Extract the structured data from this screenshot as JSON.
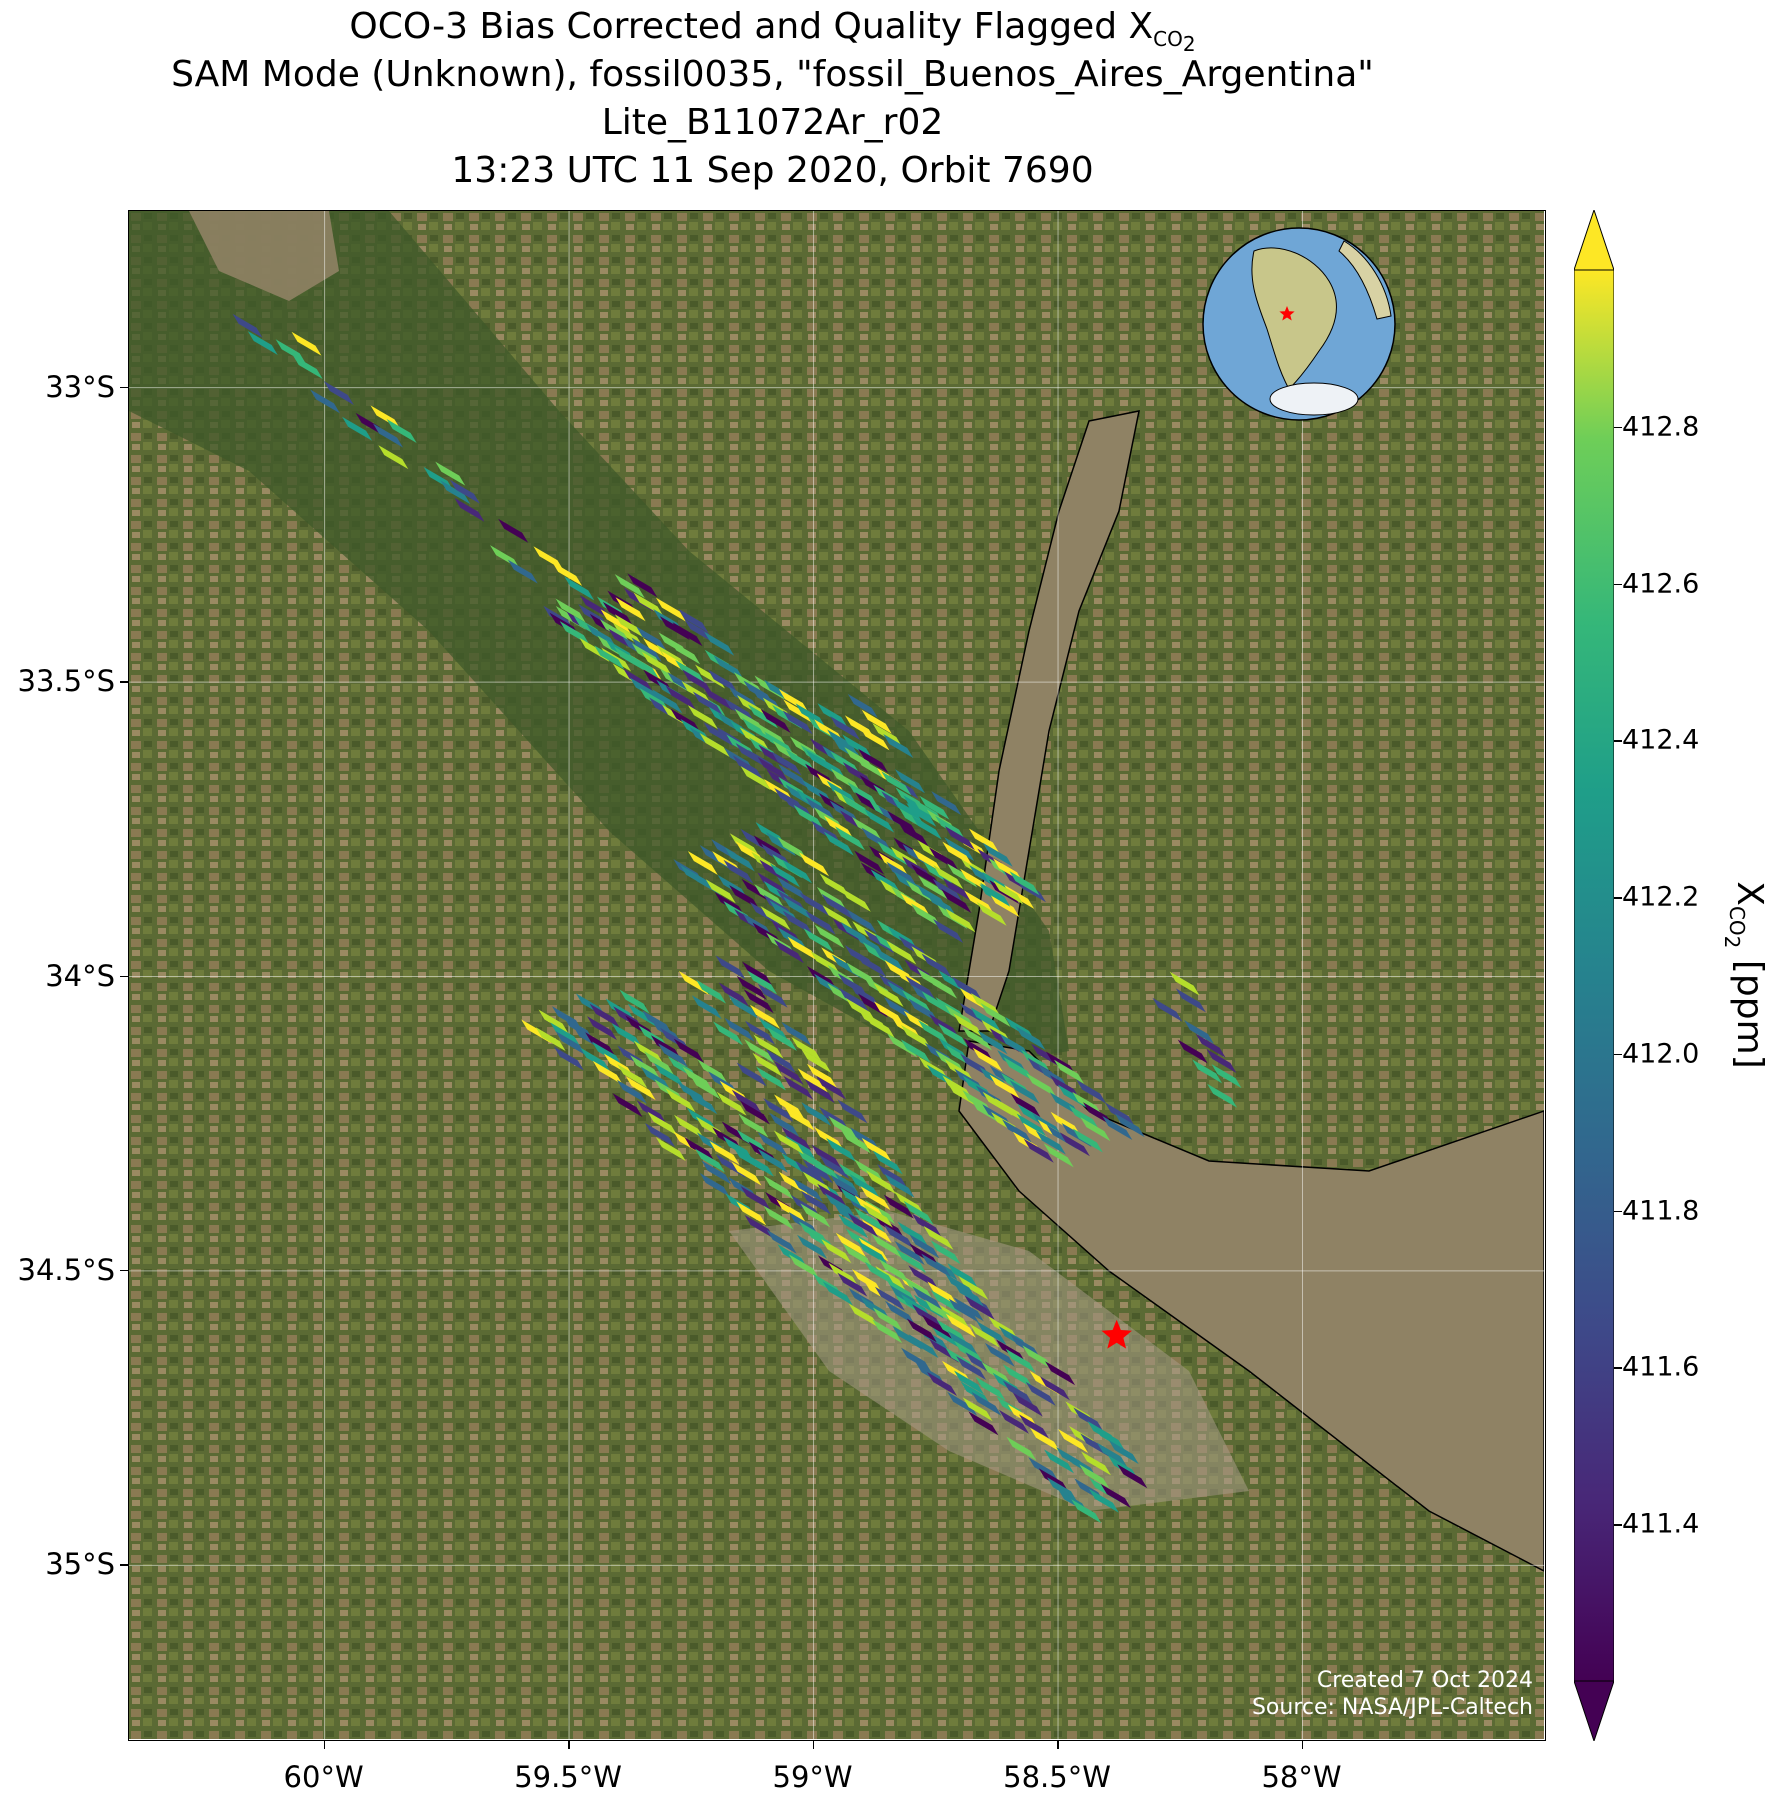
{
  "title": {
    "line1_prefix": "OCO-3 Bias Corrected and Quality Flagged X",
    "line1_sub": "CO",
    "line1_subsub": "2",
    "line2": "SAM Mode (Unknown), fossil0035, \"fossil_Buenos_Aires_Argentina\"",
    "line3": "Lite_B11072Ar_r02",
    "line4": "13:23 UTC 11 Sep 2020, Orbit 7690"
  },
  "axes": {
    "lon_range": [
      -60.4,
      -57.5
    ],
    "lat_range": [
      -35.3,
      -32.7
    ],
    "x_ticks": [
      {
        "value": -60.0,
        "label": "60°W"
      },
      {
        "value": -59.5,
        "label": "59.5°W"
      },
      {
        "value": -59.0,
        "label": "59°W"
      },
      {
        "value": -58.5,
        "label": "58.5°W"
      },
      {
        "value": -58.0,
        "label": "58°W"
      }
    ],
    "y_ticks": [
      {
        "value": -33.0,
        "label": "33°S"
      },
      {
        "value": -33.5,
        "label": "33.5°S"
      },
      {
        "value": -34.0,
        "label": "34°S"
      },
      {
        "value": -34.5,
        "label": "34.5°S"
      },
      {
        "value": -35.0,
        "label": "35°S"
      }
    ],
    "grid": true
  },
  "colorbar": {
    "colormap": "viridis",
    "range": [
      411.2,
      413.0
    ],
    "extend": "both",
    "ticks": [
      "411.4",
      "411.6",
      "411.8",
      "412.0",
      "412.2",
      "412.4",
      "412.6",
      "412.8"
    ],
    "label_prefix": "X",
    "label_sub": "CO",
    "label_subsub": "2",
    "label_suffix": " [ppm]"
  },
  "target": {
    "lon": -58.38,
    "lat": -34.61,
    "marker": "red-star"
  },
  "credit": {
    "line1": "Created 7 Oct 2024",
    "line2": "Source: NASA/JPL-Caltech"
  },
  "inset": {
    "type": "globe",
    "focus": "South America",
    "marker": "red-star"
  },
  "colors": {
    "star": "#ff0000",
    "land": "#5c6b3a",
    "water": "#8f8264",
    "globe_ocean": "#6fa6d6"
  }
}
